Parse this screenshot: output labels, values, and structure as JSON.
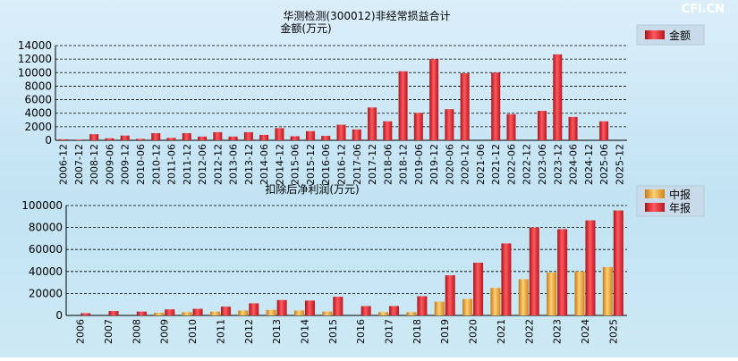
{
  "watermark": "CFi.CN",
  "chart_data": [
    {
      "type": "bar",
      "title": "华测检测(300012)非经常损益合计",
      "ylabel": "金额(万元)",
      "ylim": [
        0,
        14000
      ],
      "yticks": [
        0,
        2000,
        4000,
        6000,
        8000,
        10000,
        12000,
        14000
      ],
      "grid": true,
      "legend_position": "top-right",
      "categories": [
        "2006-12",
        "2007-12",
        "2008-12",
        "2009-06",
        "2009-12",
        "2010-06",
        "2010-12",
        "2011-06",
        "2011-12",
        "2012-06",
        "2012-12",
        "2013-06",
        "2013-12",
        "2014-06",
        "2014-12",
        "2015-06",
        "2015-12",
        "2016-06",
        "2016-12",
        "2017-06",
        "2017-12",
        "2018-06",
        "2018-12",
        "2019-06",
        "2019-12",
        "2020-06",
        "2020-12",
        "2021-06",
        "2021-12",
        "2022-06",
        "2022-12",
        "2023-06",
        "2023-12",
        "2024-06",
        "2024-12",
        "2025-06",
        "2025-12"
      ],
      "series": [
        {
          "name": "金额",
          "color": "#e8202a",
          "values": [
            150,
            100,
            900,
            300,
            700,
            200,
            1050,
            350,
            1050,
            550,
            1200,
            550,
            1200,
            800,
            1800,
            600,
            1350,
            650,
            2300,
            1600,
            4850,
            2800,
            10200,
            4050,
            12000,
            4600,
            9900,
            0,
            10000,
            3850,
            0,
            4350,
            12700,
            3450,
            0,
            2800,
            0
          ]
        }
      ]
    },
    {
      "type": "bar",
      "title": "扣除后净利润(万元)",
      "ylim": [
        0,
        100000
      ],
      "yticks": [
        0,
        20000,
        40000,
        60000,
        80000,
        100000
      ],
      "grid": true,
      "legend_position": "top-right",
      "categories": [
        "2006",
        "2007",
        "2008",
        "2009",
        "2010",
        "2011",
        "2012",
        "2013",
        "2014",
        "2015",
        "2016",
        "2017",
        "2018",
        "2019",
        "2020",
        "2021",
        "2022",
        "2023",
        "2024",
        "2025"
      ],
      "series": [
        {
          "name": "中报",
          "color": "#f5a623",
          "values": [
            0,
            0,
            0,
            2500,
            3000,
            3500,
            4500,
            5000,
            4500,
            3500,
            0,
            3000,
            3000,
            12500,
            15000,
            25000,
            33000,
            39000,
            40000,
            44000
          ]
        },
        {
          "name": "年报",
          "color": "#e8202a",
          "values": [
            2000,
            4000,
            3500,
            5500,
            6000,
            8000,
            11000,
            14000,
            13500,
            17000,
            8500,
            8500,
            17500,
            36500,
            48000,
            65500,
            80000,
            78500,
            86500,
            95500
          ]
        }
      ]
    }
  ]
}
